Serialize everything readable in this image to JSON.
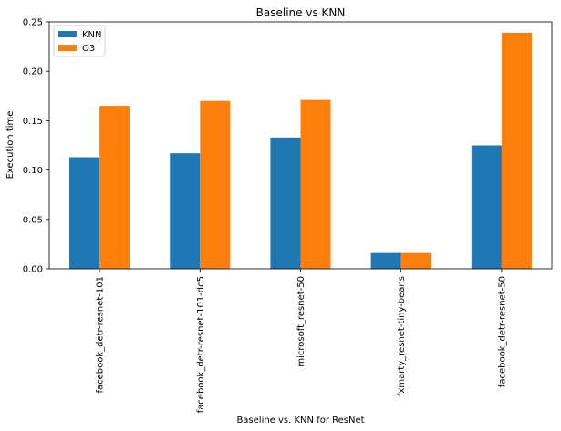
{
  "chart_data": {
    "type": "bar",
    "title": "Baseline vs KNN",
    "xlabel": "Baseline vs. KNN for ResNet",
    "ylabel": "Execution time",
    "categories": [
      "facebook_detr-resnet-101",
      "facebook_detr-resnet-101-dc5",
      "microsoft_resnet-50",
      "fxmarty_resnet-tiny-beans",
      "facebook_detr-resnet-50"
    ],
    "series": [
      {
        "name": "KNN",
        "color": "#1f77b4",
        "values": [
          0.113,
          0.117,
          0.133,
          0.016,
          0.125
        ]
      },
      {
        "name": "O3",
        "color": "#ff7f0e",
        "values": [
          0.165,
          0.17,
          0.171,
          0.016,
          0.239
        ]
      }
    ],
    "ylim": [
      0,
      0.25
    ],
    "yticks": [
      "0.00",
      "0.05",
      "0.10",
      "0.15",
      "0.20",
      "0.25"
    ],
    "grid": false,
    "legend_position": "top-left"
  }
}
